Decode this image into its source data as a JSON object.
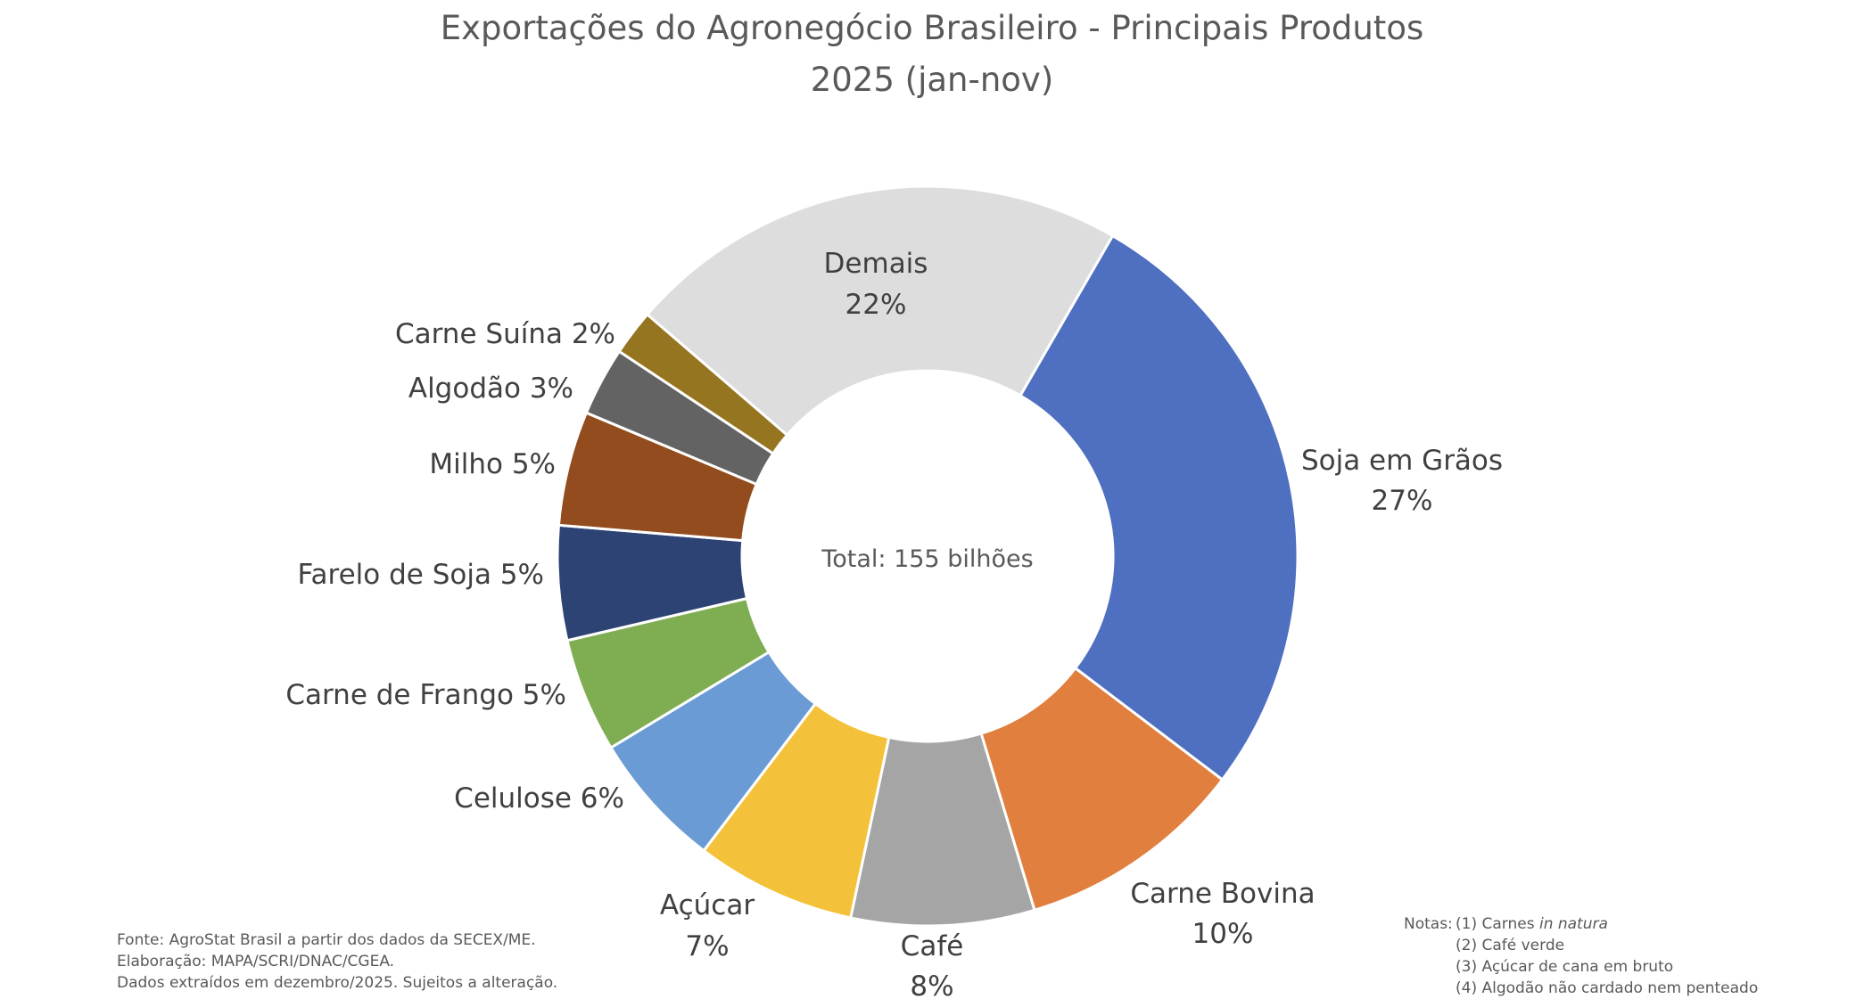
{
  "chart_data": {
    "type": "pie",
    "subtype": "donut",
    "title": "Exportações do Agronegócio Brasileiro - Principais Produtos",
    "subtitle": "2025 (jan-nov)",
    "center_label": "Total: 155 bilhões",
    "slices": [
      {
        "label": "Soja em Grãos",
        "value": 27,
        "value_label": "27%",
        "color": "#4F70C0"
      },
      {
        "label": "Carne Bovina",
        "value": 10,
        "value_label": "10%",
        "color": "#E07F3E"
      },
      {
        "label": "Café",
        "value": 8,
        "value_label": "8%",
        "color": "#A5A5A5"
      },
      {
        "label": "Açúcar",
        "value": 7,
        "value_label": "7%",
        "color": "#F4C23A"
      },
      {
        "label": "Celulose",
        "value": 6,
        "value_label": "6%",
        "color": "#6A9BD4"
      },
      {
        "label": "Carne de Frango",
        "value": 5,
        "value_label": "5%",
        "color": "#7FAD52"
      },
      {
        "label": "Farelo de Soja",
        "value": 5,
        "value_label": "5%",
        "color": "#2C4374"
      },
      {
        "label": "Milho",
        "value": 5,
        "value_label": "5%",
        "color": "#924C1D"
      },
      {
        "label": "Algodão",
        "value": 3,
        "value_label": "3%",
        "color": "#636363"
      },
      {
        "label": "Carne Suína",
        "value": 2,
        "value_label": "2%",
        "color": "#957520"
      },
      {
        "label": "Demais",
        "value": 22,
        "value_label": "22%",
        "color": "#DDDDDD"
      }
    ],
    "legend": "none (data labels)"
  },
  "footer": {
    "source": [
      "Fonte: AgroStat Brasil a partir dos dados da SECEX/ME.",
      "Elaboração: MAPA/SCRI/DNAC/CGEA.",
      "Dados extraídos em dezembro/2025. Sujeitos a alteração."
    ],
    "notes_prefix": "Notas:",
    "notes": [
      "(1) Carnes ",
      "(2) Café verde",
      "(3) Açúcar de cana em bruto",
      "(4) Algodão não cardado nem penteado"
    ],
    "note1_italic": "in natura"
  }
}
